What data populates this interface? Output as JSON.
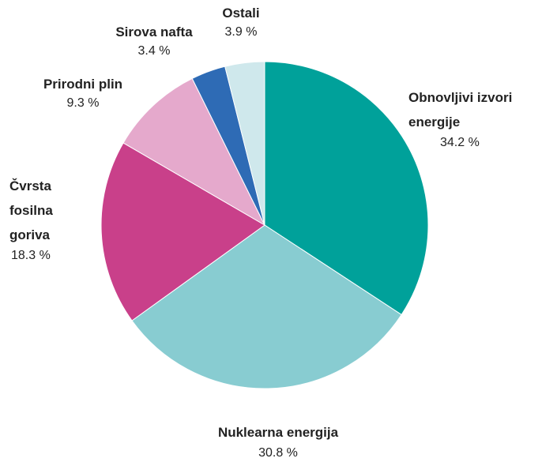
{
  "chart_data": {
    "type": "pie",
    "categories": [
      "Obnovljivi izvori energije",
      "Nuklearna energija",
      "Čvrsta fosilna goriva",
      "Prirodni plin",
      "Sirova nafta",
      "Ostali"
    ],
    "values": [
      34.2,
      30.8,
      18.3,
      9.3,
      3.4,
      3.9
    ],
    "value_labels": [
      "34.2 %",
      "30.8 %",
      "18.3 %",
      "9.3 %",
      "3.4 %",
      "3.9 %"
    ],
    "colors": [
      "#00a19a",
      "#88ccd1",
      "#c9408a",
      "#e5a9cc",
      "#2e6bb5",
      "#cfe8ec"
    ]
  }
}
